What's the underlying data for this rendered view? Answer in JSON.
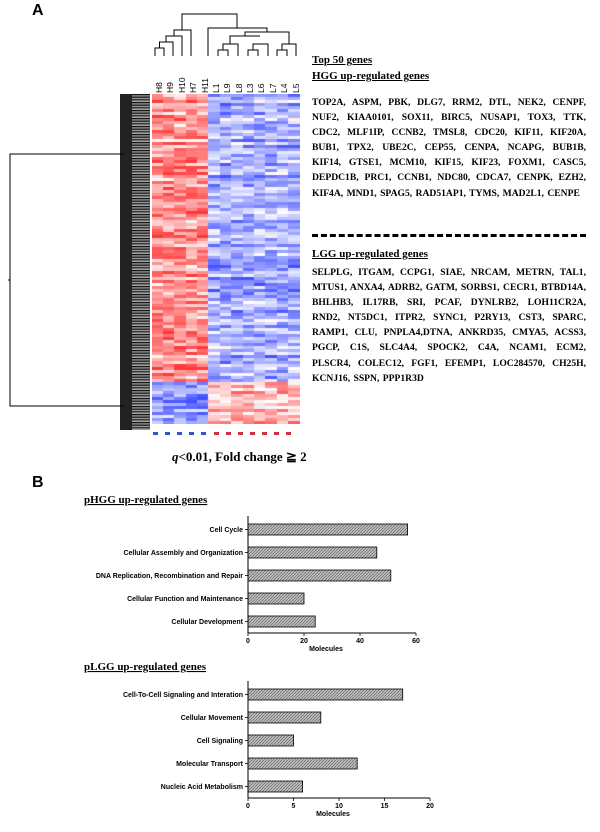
{
  "panel_a": {
    "label": "A",
    "groups": [
      {
        "name": "HGG",
        "color": "#ff0000"
      },
      {
        "name": "LGG",
        "color": "#5b8fd0"
      }
    ],
    "samples": [
      "H8",
      "H9",
      "H10",
      "H7",
      "H11",
      "L1",
      "L9",
      "L8",
      "L3",
      "L6",
      "L7",
      "L4",
      "L5"
    ],
    "top_genes_title": "Top 50 genes",
    "hgg_title": "HGG up-regulated genes",
    "hgg_genes": "TOP2A, ASPM, PBK, DLG7, RRM2, DTL, NEK2, CENPF, NUF2, KIAA0101, SOX11, BIRC5, NUSAP1, TOX3, TTK, CDC2, MLF1IP, CCNB2, TMSL8, CDC20, KIF11, KIF20A, BUB1, TPX2, UBE2C, CEP55, CENPA, NCAPG, BUB1B, KIF14, GTSE1, MCM10, KIF15, KIF23, FOXM1, CASC5, DEPDC1B, PRC1, CCNB1, NDC80, CDCA7, CENPK, EZH2, KIF4A, MND1, SPAG5, RAD51AP1, TYMS, MAD2L1, CENPE",
    "lgg_title": "LGG up-regulated genes",
    "lgg_genes": "SELPLG, ITGAM, CCPG1, SIAE, NRCAM, METRN, TAL1, MTUS1, ANXA4, ADRB2, GATM, SORBS1, CECR1, BTBD14A, BHLHB3, IL17RB, SRI, PCAF, DYNLRB2, LOH11CR2A, RND2, NT5DC1, ITPR2, SYNC1, P2RY13, CST3, SPARC, RAMP1, CLU, PNPLA4,DTNA, ANKRD35, CMYA5, ACSS3, PGCP, C1S, SLC4A4, SPOCK2, C4A, NCAM1, ECM2, PLSCR4, COLEC12, FGF1, EFEMP1, LOC284570, CH25H, KCNJ16, SSPN, PPP1R3D",
    "threshold_q": "q",
    "threshold_rest": "<0.01,   Fold change ≧ 2"
  },
  "panel_b": {
    "label": "B",
    "colors": {
      "bar_fill": "#bdbdbd",
      "bar_stroke": "#000000"
    }
  },
  "chart_data": [
    {
      "type": "bar",
      "orientation": "horizontal",
      "title": "pHGG up-regulated genes",
      "categories": [
        "Cell Cycle",
        "Cellular Assembly and Organization",
        "DNA Replication, Recombination and Repair",
        "Cellular Function and Maintenance",
        "Cellular Development"
      ],
      "values": [
        57,
        46,
        51,
        20,
        24
      ],
      "xlabel": "Molecules",
      "xlim": [
        0,
        60
      ],
      "xticks": [
        0,
        20,
        40,
        60
      ],
      "xtick_labels": [
        "0",
        "20",
        "40",
        "60"
      ]
    },
    {
      "type": "bar",
      "orientation": "horizontal",
      "title": "pLGG up-regulated genes",
      "categories": [
        "Cell-To-Cell Signaling and Interation",
        "Cellular Movement",
        "Cell Signaling",
        "Molecular Transport",
        "Nucleic Acid Metabolism"
      ],
      "values": [
        17,
        8,
        5,
        12,
        6
      ],
      "xlabel": "Molecules",
      "xlim": [
        0,
        20
      ],
      "xticks": [
        0,
        5,
        10,
        15,
        20
      ],
      "xtick_labels": [
        "0",
        "5",
        "10",
        "15",
        "20"
      ]
    }
  ]
}
